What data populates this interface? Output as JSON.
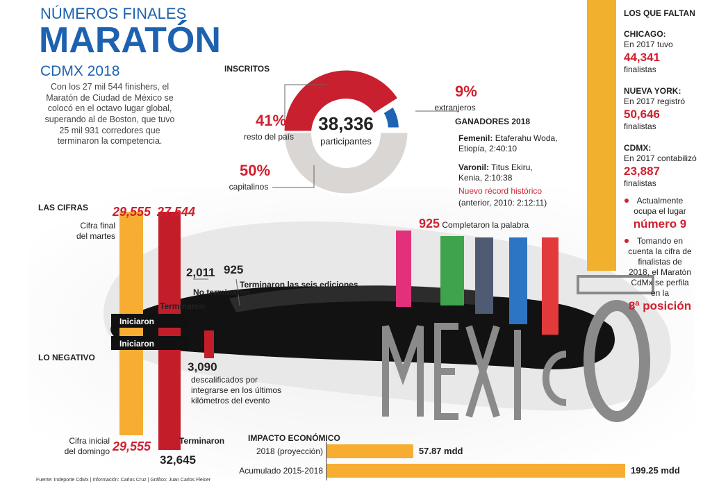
{
  "header": {
    "kicker": "NÚMEROS FINALES",
    "title": "MARATÓN",
    "subtitle": "CDMX 2018",
    "intro": "Con los 27 mil 544 finishers, el Maratón de Ciudad de México se colocó en el octavo lugar global, superando al de Boston, que tuvo 25 mil 931 corredores que terminaron la competencia."
  },
  "chart_data": [
    {
      "type": "pie",
      "title": "INSCRITOS",
      "center_value": "38,336",
      "center_label": "participantes",
      "categories": [
        "resto del país",
        "extranjeros",
        "capitalinos"
      ],
      "values": [
        41,
        9,
        50
      ],
      "value_labels": [
        "41%",
        "9%",
        "50%"
      ],
      "colors": [
        "#c8202f",
        "#1f63b3",
        "#d9d6d4"
      ]
    },
    {
      "type": "hbar",
      "title": "IMPACTO ECONÓMICO",
      "categories": [
        "2018 (proyección)",
        "Acumulado 2015-2018"
      ],
      "values": [
        57.87,
        199.25
      ],
      "value_labels": [
        "57.87 mdd",
        "199.25 mdd"
      ],
      "color": "#f6ad32"
    }
  ],
  "winners": {
    "title": "GANADORES 2018",
    "female_label": "Femenil:",
    "female": "Etaferahu Woda, Etiopía, 2:40:10",
    "male_label": "Varonil:",
    "male": "Titus Ekiru, Kenia, 2:10:38",
    "record": "Nuevo récord histórico",
    "previous": "(anterior, 2010: 2:12:11)"
  },
  "figures": {
    "title": "LAS CIFRAS",
    "final_label": "Cifra final del martes",
    "final_started": "29,555",
    "final_finished": "27,544",
    "finished_label": "Terminaron",
    "not_finished": "2,011",
    "not_finished_label": "No terminaron",
    "six_editions": "925",
    "six_editions_label": "Terminaron las seis ediciones",
    "started_label_1": "Iniciaron",
    "started_label_2": "Iniciaron",
    "negative_title": "LO NEGATIVO",
    "disqualified": "3,090",
    "disqualified_label": "descalificados por integrarse en los últimos kilómetros del evento",
    "initial_label": "Cifra inicial del domingo",
    "initial_started": "29,555",
    "initial_finished": "32,645",
    "initial_finished_label": "Terminaron",
    "word_count": "925",
    "word_label": "Completaron la palabra"
  },
  "missing": {
    "title": "LOS QUE FALTAN",
    "chicago_label": "CHICAGO:",
    "chicago_text": "En 2017 tuvo",
    "chicago_value": "44,341",
    "chicago_unit": "finalistas",
    "ny_label": "NUEVA YORK:",
    "ny_text": "En 2017 registró",
    "ny_value": "50,646",
    "ny_unit": "finalistas",
    "cdmx_label": "CDMX:",
    "cdmx_text": "En 2017 contabilizó",
    "cdmx_value": "23,887",
    "cdmx_unit": "finalistas",
    "bullet_1": "Actualmente ocupa el lugar",
    "bullet_1_value": "número 9",
    "bullet_2": "Tomando en cuenta la cifra de finalistas de 2018, el Maratón CdMx se perfila en la",
    "bullet_2_value": "8ª posición"
  },
  "footer": "Fuente: Indeporte CdMx | Información: Carlos Cruz | Gráfico: Juan Carlos Fleicer"
}
